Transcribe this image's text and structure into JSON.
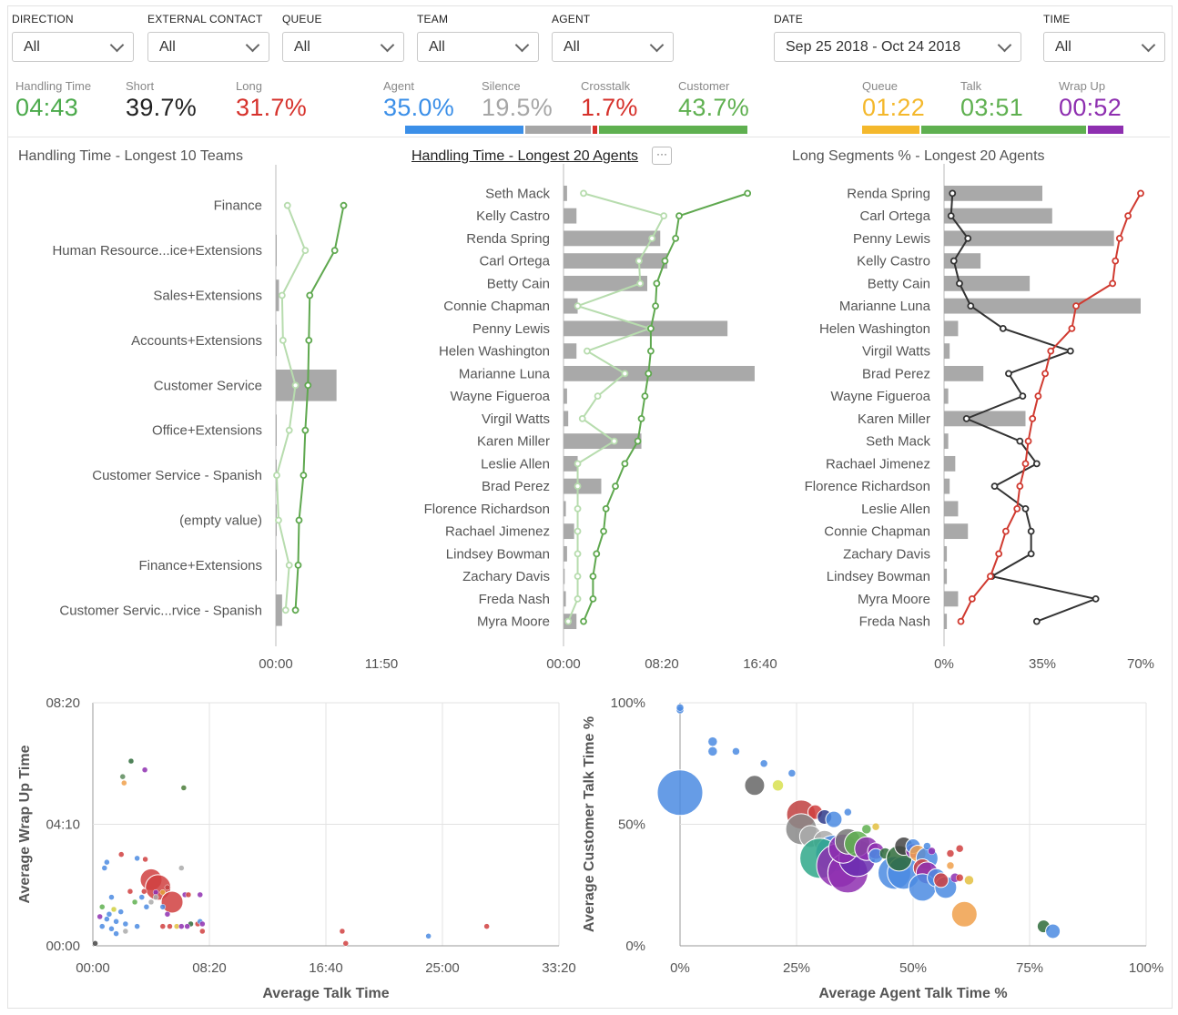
{
  "filters": [
    {
      "id": "direction",
      "label": "DIRECTION",
      "value": "All"
    },
    {
      "id": "external",
      "label": "EXTERNAL CONTACT",
      "value": "All"
    },
    {
      "id": "queue",
      "label": "QUEUE",
      "value": "All"
    },
    {
      "id": "team",
      "label": "TEAM",
      "value": "All"
    },
    {
      "id": "agent",
      "label": "AGENT",
      "value": "All"
    },
    {
      "id": "date",
      "label": "DATE",
      "value": "Sep 25 2018 - Oct 24 2018"
    },
    {
      "id": "time",
      "label": "TIME",
      "value": "All"
    }
  ],
  "metrics": [
    {
      "id": "handling",
      "label": "Handling Time",
      "value": "04:43",
      "color": "#4caa4c"
    },
    {
      "id": "short",
      "label": "Short",
      "value": "39.7%",
      "color": "#222222"
    },
    {
      "id": "long",
      "label": "Long",
      "value": "31.7%",
      "color": "#d6312b"
    },
    {
      "id": "agent",
      "label": "Agent",
      "value": "35.0%",
      "color": "#3b8fe8"
    },
    {
      "id": "silence",
      "label": "Silence",
      "value": "19.5%",
      "color": "#a6a6a6"
    },
    {
      "id": "crosstalk",
      "label": "Crosstalk",
      "value": "1.7%",
      "color": "#d6312b"
    },
    {
      "id": "customer",
      "label": "Customer",
      "value": "43.7%",
      "color": "#5fb050"
    },
    {
      "id": "queue",
      "label": "Queue",
      "value": "01:22",
      "color": "#f4b82c"
    },
    {
      "id": "talk",
      "label": "Talk",
      "value": "03:51",
      "color": "#5fb050"
    },
    {
      "id": "wrapup",
      "label": "Wrap Up",
      "value": "00:52",
      "color": "#8e2fb0"
    }
  ],
  "talk_split": [
    {
      "name": "Agent",
      "pct": 35.0,
      "color": "#3b8fe8"
    },
    {
      "name": "Silence",
      "pct": 19.5,
      "color": "#a6a6a6"
    },
    {
      "name": "Crosstalk",
      "pct": 1.7,
      "color": "#d6312b"
    },
    {
      "name": "Customer",
      "pct": 43.7,
      "color": "#5fb050"
    }
  ],
  "time_split": [
    {
      "name": "Queue",
      "seconds": 82,
      "color": "#f4b82c"
    },
    {
      "name": "Talk",
      "seconds": 231,
      "color": "#5fb050"
    },
    {
      "name": "Wrap Up",
      "seconds": 52,
      "color": "#8e2fb0"
    }
  ],
  "panels": {
    "teams_title": "Handling Time - Longest 10 Teams",
    "agents_title": "Handling Time - Longest 20 Agents",
    "long_title": "Long Segments % - Longest 20 Agents",
    "more_label": "···"
  },
  "chart_data": [
    {
      "id": "teams",
      "type": "bar",
      "title": "Handling Time - Longest 10 Teams",
      "categories": [
        "Finance",
        "Human Resource...ice+Extensions",
        "Sales+Extensions",
        "Accounts+Extensions",
        "Customer Service",
        "Office+Extensions",
        "Customer Service - Spanish",
        "(empty value)",
        "Finance+Extensions",
        "Customer Servic...rvice - Spanish"
      ],
      "bar_values": [
        0,
        0.1,
        0.35,
        0.1,
        6.8,
        0.1,
        0.1,
        0.1,
        0.1,
        0.7
      ],
      "line_light": [
        1.3,
        3.3,
        0.7,
        0.8,
        2.2,
        1.5,
        0.1,
        0.3,
        1.5,
        1.1
      ],
      "line_dark": [
        7.6,
        6.6,
        3.8,
        3.7,
        3.6,
        3.3,
        3.1,
        2.6,
        2.5,
        2.2
      ],
      "xlim": [
        0,
        11.833
      ],
      "xticks": [
        "00:00",
        "11:50"
      ]
    },
    {
      "id": "agents",
      "type": "bar",
      "title": "Handling Time - Longest 20 Agents",
      "categories": [
        "Seth Mack",
        "Kelly Castro",
        "Renda Spring",
        "Carl Ortega",
        "Betty Cain",
        "Connie Chapman",
        "Penny Lewis",
        "Helen Washington",
        "Marianne Luna",
        "Wayne Figueroa",
        "Virgil Watts",
        "Karen Miller",
        "Leslie Allen",
        "Brad Perez",
        "Florence Richardson",
        "Rachael Jimenez",
        "Lindsey Bowman",
        "Zachary Davis",
        "Freda Nash",
        "Myra Moore"
      ],
      "bar_values": [
        0.3,
        1.1,
        8.2,
        8.8,
        7.1,
        1.2,
        13.9,
        1.1,
        16.2,
        0.3,
        0.4,
        6.6,
        1.2,
        3.2,
        0.2,
        0.9,
        0.3,
        0.1,
        0.2,
        1.1
      ],
      "line_light": [
        1.7,
        8.5,
        7.5,
        6.4,
        6.5,
        1.2,
        7.3,
        2.0,
        5.2,
        2.9,
        1.6,
        4.3,
        1.2,
        1.2,
        1.2,
        1.2,
        1.2,
        1.2,
        1.2,
        0.4
      ],
      "line_dark": [
        15.6,
        9.8,
        9.5,
        8.6,
        7.9,
        7.8,
        7.4,
        7.4,
        7.2,
        6.9,
        6.6,
        6.3,
        5.2,
        4.4,
        3.6,
        3.4,
        2.8,
        2.5,
        2.5,
        1.7
      ],
      "xlim": [
        0,
        16.667
      ],
      "xticks": [
        "00:00",
        "08:20",
        "16:40"
      ]
    },
    {
      "id": "long",
      "type": "bar",
      "title": "Long Segments % - Longest 20 Agents",
      "categories": [
        "Renda Spring",
        "Carl Ortega",
        "Penny Lewis",
        "Kelly Castro",
        "Betty Cain",
        "Marianne Luna",
        "Helen Washington",
        "Virgil Watts",
        "Brad Perez",
        "Wayne Figueroa",
        "Karen Miller",
        "Seth Mack",
        "Rachael Jimenez",
        "Florence Richardson",
        "Leslie Allen",
        "Connie Chapman",
        "Zachary Davis",
        "Lindsey Bowman",
        "Myra Moore",
        "Freda Nash"
      ],
      "bar_values": [
        35,
        38.5,
        60.5,
        13,
        30.5,
        70,
        5,
        2,
        14,
        1.5,
        29,
        1.5,
        4,
        2,
        5,
        8.5,
        1,
        1,
        5,
        1
      ],
      "line_black": [
        3,
        2.5,
        8.5,
        3.5,
        5.5,
        9.5,
        21,
        45,
        23,
        28,
        8,
        27,
        33,
        18,
        29,
        31,
        31,
        17,
        54,
        33
      ],
      "line_red": [
        70,
        65.5,
        62.5,
        61,
        60,
        47,
        45.5,
        38,
        36,
        33.5,
        31.5,
        30,
        29,
        27,
        26,
        22,
        19.5,
        16.5,
        10,
        6
      ],
      "xlim": [
        0,
        70
      ],
      "xticks": [
        "0%",
        "35%",
        "70%"
      ]
    },
    {
      "id": "wrap_talk",
      "type": "scatter",
      "xlabel": "Average Talk Time",
      "ylabel": "Average Wrap Up Time",
      "xlim": [
        0,
        2000
      ],
      "ylim": [
        0,
        500
      ],
      "xticks": [
        "00:00",
        "08:20",
        "16:40",
        "25:00",
        "33:20"
      ],
      "yticks": [
        "00:00",
        "04:10",
        "08:20"
      ],
      "points": [
        [
          164,
          380,
          3,
          "#2e6b3a"
        ],
        [
          223,
          362,
          3,
          "#8e2fb0"
        ],
        [
          128,
          348,
          3,
          "#5a8a5a"
        ],
        [
          134,
          335,
          3,
          "#f0a04b"
        ],
        [
          390,
          325,
          3,
          "#4a7d3a"
        ],
        [
          122,
          188,
          3,
          "#d04040"
        ],
        [
          190,
          180,
          3,
          "#4b8be2"
        ],
        [
          225,
          178,
          3,
          "#d04040"
        ],
        [
          60,
          172,
          3,
          "#4b8be2"
        ],
        [
          50,
          160,
          3,
          "#4b8be2"
        ],
        [
          380,
          160,
          3,
          "#aaa"
        ],
        [
          250,
          136,
          12,
          "#d04040"
        ],
        [
          280,
          120,
          14,
          "#d04040"
        ],
        [
          220,
          112,
          3,
          "#d04040"
        ],
        [
          160,
          112,
          3,
          "#d04040"
        ],
        [
          320,
          120,
          3,
          "#c04040"
        ],
        [
          270,
          110,
          3,
          "#8e2fb0"
        ],
        [
          300,
          110,
          3,
          "#e3a03a"
        ],
        [
          270,
          100,
          3,
          "#aaa"
        ],
        [
          395,
          105,
          3,
          "#8e2fb0"
        ],
        [
          410,
          105,
          3,
          "#d04040"
        ],
        [
          460,
          105,
          3,
          "#8e2fb0"
        ],
        [
          340,
          90,
          12,
          "#d04040"
        ],
        [
          210,
          100,
          3,
          "#4b8be2"
        ],
        [
          250,
          90,
          3,
          "#aaa"
        ],
        [
          180,
          90,
          3,
          "#5fb050"
        ],
        [
          230,
          80,
          3,
          "#4b8be2"
        ],
        [
          300,
          80,
          3,
          "#4b8be2"
        ],
        [
          80,
          100,
          3,
          "#4b8be2"
        ],
        [
          40,
          80,
          3,
          "#5fb050"
        ],
        [
          90,
          75,
          3,
          "#d0d040"
        ],
        [
          120,
          70,
          3,
          "#4b8be2"
        ],
        [
          70,
          65,
          3,
          "#4b8be2"
        ],
        [
          30,
          60,
          3,
          "#8e2fb0"
        ],
        [
          60,
          55,
          3,
          "#4b8be2"
        ],
        [
          100,
          50,
          3,
          "#4b8be2"
        ],
        [
          140,
          45,
          3,
          "#4b8be2"
        ],
        [
          40,
          40,
          3,
          "#4b8be2"
        ],
        [
          80,
          35,
          3,
          "#4b8be2"
        ],
        [
          190,
          40,
          3,
          "#4b8be2"
        ],
        [
          300,
          40,
          3,
          "#d04040"
        ],
        [
          330,
          40,
          3,
          "#d04040"
        ],
        [
          360,
          40,
          3,
          "#e3c040"
        ],
        [
          380,
          40,
          3,
          "#8e2fb0"
        ],
        [
          420,
          45,
          3,
          "#2e6b3a"
        ],
        [
          450,
          45,
          3,
          "#d04040"
        ],
        [
          460,
          50,
          3,
          "#4b8be2"
        ],
        [
          470,
          45,
          3,
          "#8e2fb0"
        ],
        [
          470,
          30,
          3,
          "#d04040"
        ],
        [
          1070,
          30,
          3,
          "#d04040"
        ],
        [
          1085,
          5,
          3,
          "#d04040"
        ],
        [
          1440,
          20,
          3,
          "#4b8be2"
        ],
        [
          1690,
          40,
          3,
          "#d04040"
        ],
        [
          10,
          5,
          3,
          "#444"
        ],
        [
          100,
          25,
          3,
          "#4b8be2"
        ],
        [
          140,
          30,
          3,
          "#aaa"
        ],
        [
          320,
          65,
          3,
          "#8e2fb0"
        ],
        [
          405,
          40,
          3,
          "#8e2fb0"
        ]
      ]
    },
    {
      "id": "talk_pct",
      "type": "scatter",
      "xlabel": "Average Agent Talk Time %",
      "ylabel": "Average Customer Talk Time %",
      "xlim": [
        0,
        100
      ],
      "ylim": [
        0,
        100
      ],
      "xticks": [
        "0%",
        "25%",
        "50%",
        "75%",
        "100%"
      ],
      "yticks": [
        "0%",
        "50%",
        "100%"
      ],
      "points": [
        [
          0,
          97,
          4,
          "#4b8be2"
        ],
        [
          0,
          98,
          4,
          "#4b8be2"
        ],
        [
          7,
          84,
          5,
          "#4b8be2"
        ],
        [
          7,
          80,
          5,
          "#4b8be2"
        ],
        [
          12,
          80,
          4,
          "#4b8be2"
        ],
        [
          18,
          75,
          4,
          "#4b8be2"
        ],
        [
          24,
          71,
          4,
          "#4b8be2"
        ],
        [
          0,
          63,
          25,
          "#4b8be2"
        ],
        [
          16,
          66,
          11,
          "#666"
        ],
        [
          21,
          66,
          6,
          "#d8e050"
        ],
        [
          26,
          54,
          16,
          "#c04040"
        ],
        [
          29,
          55,
          8,
          "#d04040"
        ],
        [
          31,
          53,
          8,
          "#2e3a8a"
        ],
        [
          36,
          55,
          4,
          "#4b8be2"
        ],
        [
          33,
          52,
          9,
          "#4b8be2"
        ],
        [
          26,
          48,
          17,
          "#888"
        ],
        [
          28,
          45,
          12,
          "#aaa"
        ],
        [
          31,
          43,
          12,
          "#aaa"
        ],
        [
          33,
          38,
          20,
          "#4b8be2"
        ],
        [
          30,
          36,
          22,
          "#2fa88a"
        ],
        [
          34,
          33,
          24,
          "#8e2fb0"
        ],
        [
          36,
          30,
          22,
          "#8e2fb0"
        ],
        [
          38,
          36,
          20,
          "#6a2fb0"
        ],
        [
          35,
          40,
          16,
          "#8e2fb0"
        ],
        [
          36,
          43,
          14,
          "#777"
        ],
        [
          38,
          42,
          14,
          "#5fb050"
        ],
        [
          40,
          40,
          13,
          "#8e2fb0"
        ],
        [
          42,
          39,
          9,
          "#8e2fb0"
        ],
        [
          40,
          48,
          5,
          "#5fb050"
        ],
        [
          42,
          49,
          4,
          "#e3c040"
        ],
        [
          42,
          37,
          8,
          "#4b8be2"
        ],
        [
          44,
          38,
          6,
          "#2e6b3a"
        ],
        [
          46,
          30,
          18,
          "#4b8be2"
        ],
        [
          48,
          30,
          18,
          "#4b8be2"
        ],
        [
          47,
          36,
          14,
          "#2e6b3a"
        ],
        [
          48,
          41,
          10,
          "#444"
        ],
        [
          50,
          39,
          8,
          "#8e2fb0"
        ],
        [
          50,
          41,
          8,
          "#4b8be2"
        ],
        [
          51,
          38,
          9,
          "#f0a04b"
        ],
        [
          53,
          36,
          12,
          "#4b8be2"
        ],
        [
          52,
          32,
          10,
          "#d04040"
        ],
        [
          53,
          30,
          12,
          "#8e2fb0"
        ],
        [
          52,
          24,
          15,
          "#4b8be2"
        ],
        [
          55,
          28,
          10,
          "#4b8be2"
        ],
        [
          57,
          24,
          12,
          "#4b8be2"
        ],
        [
          56,
          27,
          8,
          "#d04040"
        ],
        [
          58,
          33,
          4,
          "#f0a04b"
        ],
        [
          59,
          28,
          5,
          "#8e2fb0"
        ],
        [
          60,
          28,
          4,
          "#d04040"
        ],
        [
          58,
          38,
          4,
          "#d04040"
        ],
        [
          60,
          40,
          4,
          "#d04040"
        ],
        [
          62,
          27,
          5,
          "#e3c040"
        ],
        [
          53,
          41,
          4,
          "#4b8be2"
        ],
        [
          54,
          39,
          4,
          "#8e2fb0"
        ],
        [
          61,
          13,
          14,
          "#f0a04b"
        ],
        [
          78,
          8,
          7,
          "#2e6b3a"
        ],
        [
          80,
          6,
          8,
          "#4b8be2"
        ]
      ]
    }
  ]
}
